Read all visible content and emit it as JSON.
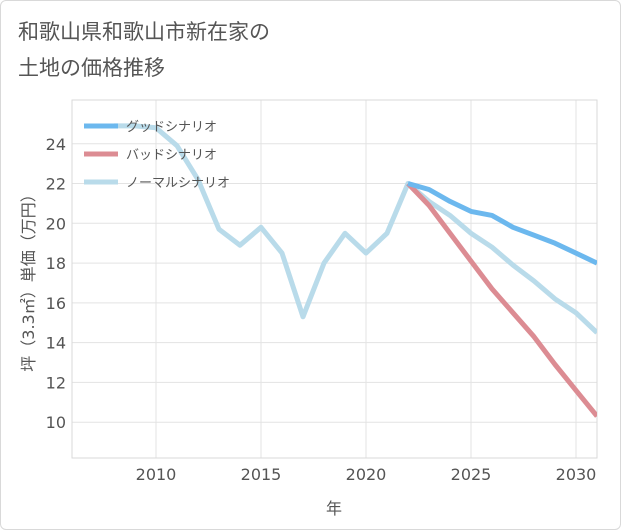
{
  "title": "和歌山県和歌山市新在家の\n土地の価格推移",
  "chart_data": {
    "type": "line",
    "title": "和歌山県和歌山市新在家の土地の価格推移",
    "xlabel": "年",
    "ylabel": "坪（3.3㎡）単価（万円）",
    "xlim": [
      2006,
      2031
    ],
    "ylim": [
      8.2,
      26.2
    ],
    "xticks": [
      2010,
      2015,
      2020,
      2025,
      2030
    ],
    "yticks": [
      10,
      12,
      14,
      16,
      18,
      20,
      22,
      24
    ],
    "grid": true,
    "legend_position": "top-left",
    "series": [
      {
        "name": "グッドシナリオ",
        "color": "#6cb8ee",
        "x": [
          2022,
          2023,
          2024,
          2025,
          2026,
          2027,
          2028,
          2029,
          2030,
          2031
        ],
        "y": [
          22.0,
          21.7,
          21.1,
          20.6,
          20.4,
          19.8,
          19.4,
          19.0,
          18.5,
          18.0
        ]
      },
      {
        "name": "バッドシナリオ",
        "color": "#dc8c93",
        "x": [
          2022,
          2023,
          2024,
          2025,
          2026,
          2027,
          2028,
          2029,
          2030,
          2031
        ],
        "y": [
          22.0,
          20.9,
          19.5,
          18.1,
          16.7,
          15.5,
          14.3,
          12.9,
          11.6,
          10.3
        ]
      },
      {
        "name": "ノーマルシナリオ",
        "color": "#b9dbea",
        "x": [
          2008,
          2009,
          2010,
          2011,
          2012,
          2013,
          2014,
          2015,
          2016,
          2017,
          2018,
          2019,
          2020,
          2021,
          2022,
          2023,
          2024,
          2025,
          2026,
          2027,
          2028,
          2029,
          2030,
          2031
        ],
        "y": [
          24.9,
          24.9,
          24.8,
          23.9,
          22.2,
          19.7,
          18.9,
          19.8,
          18.5,
          15.3,
          18.0,
          19.5,
          18.5,
          19.5,
          22.0,
          21.1,
          20.4,
          19.5,
          18.8,
          17.9,
          17.1,
          16.2,
          15.5,
          14.5
        ]
      }
    ]
  }
}
